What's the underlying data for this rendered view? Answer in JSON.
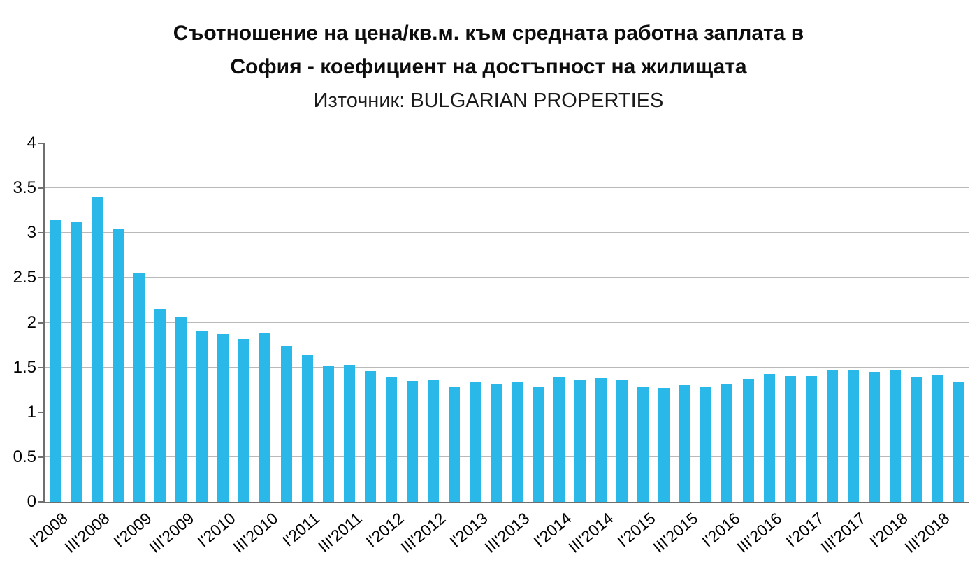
{
  "title": {
    "line1": "Съотношение на цена/кв.м. към средната работна заплата в",
    "line2": "София - коефициент на достъпност на жилищата",
    "line3": "Източник: BULGARIAN PROPERTIES"
  },
  "chart_data": {
    "type": "bar",
    "title": "Съотношение на цена/кв.м. към средната работна заплата в София - коефициент на достъпност на жилищата",
    "subtitle": "Източник: BULGARIAN PROPERTIES",
    "categories": [
      "I'2008",
      "II'2008",
      "III'2008",
      "IV'2008",
      "I'2009",
      "II'2009",
      "III'2009",
      "IV'2009",
      "I'2010",
      "II'2010",
      "III'2010",
      "IV'2010",
      "I'2011",
      "II'2011",
      "III'2011",
      "IV'2011",
      "I'2012",
      "II'2012",
      "III'2012",
      "IV'2012",
      "I'2013",
      "II'2013",
      "III'2013",
      "IV'2013",
      "I'2014",
      "II'2014",
      "III'2014",
      "IV'2014",
      "I'2015",
      "II'2015",
      "III'2015",
      "IV'2015",
      "I'2016",
      "II'2016",
      "III'2016",
      "IV'2016",
      "I'2017",
      "II'2017",
      "III'2017",
      "IV'2017",
      "I'2018",
      "II'2018",
      "III'2018",
      "IV'2018"
    ],
    "values": [
      3.14,
      3.13,
      3.4,
      3.05,
      2.55,
      2.15,
      2.06,
      1.91,
      1.87,
      1.82,
      1.88,
      1.74,
      1.64,
      1.52,
      1.53,
      1.46,
      1.39,
      1.35,
      1.36,
      1.28,
      1.33,
      1.31,
      1.33,
      1.28,
      1.39,
      1.36,
      1.38,
      1.36,
      1.29,
      1.27,
      1.3,
      1.29,
      1.31,
      1.37,
      1.43,
      1.4,
      1.4,
      1.47,
      1.47,
      1.45,
      1.47,
      1.39,
      1.41,
      1.33
    ],
    "x_tick_labels": [
      "I'2008",
      "III'2008",
      "I'2009",
      "III'2009",
      "I'2010",
      "III'2010",
      "I'2011",
      "III'2011",
      "I'2012",
      "III'2012",
      "I'2013",
      "III'2013",
      "I'2014",
      "III'2014",
      "I'2015",
      "III'2015",
      "I'2016",
      "III'2016",
      "I'2017",
      "III'2017",
      "I'2018",
      "III'2018"
    ],
    "y_tick_labels": [
      "0",
      "0.5",
      "1",
      "1.5",
      "2",
      "2.5",
      "3",
      "3.5",
      "4"
    ],
    "ylim": [
      0,
      4
    ],
    "y_tick_step": 0.5,
    "bar_color": "#29b8e8",
    "grid": true,
    "legend": "none",
    "xlabel": "",
    "ylabel": ""
  }
}
